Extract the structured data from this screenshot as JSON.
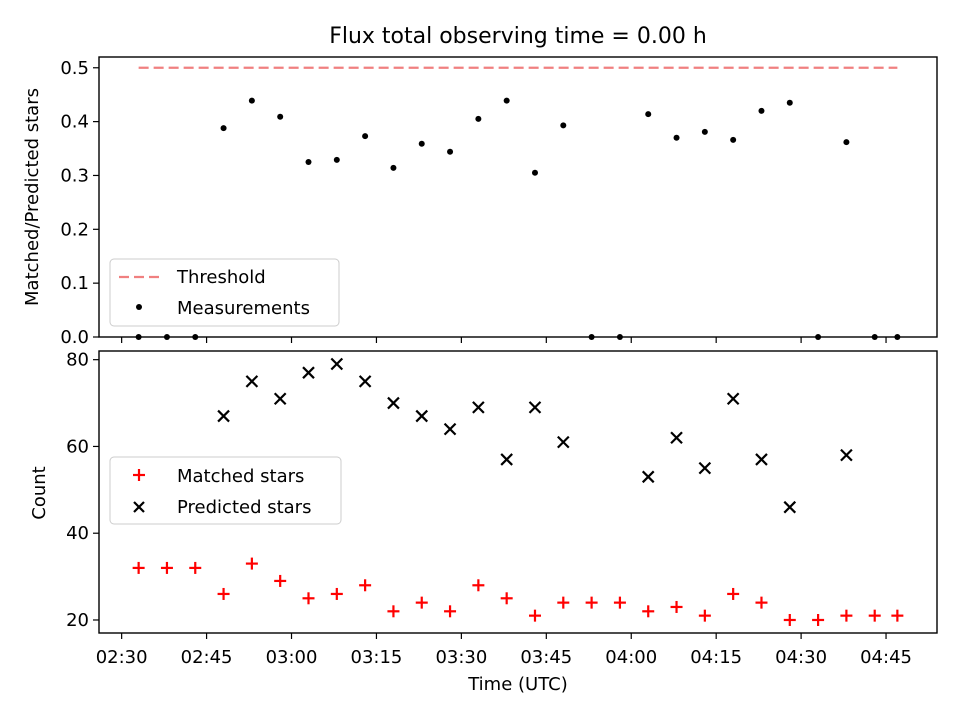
{
  "chart_data": [
    {
      "type": "scatter",
      "title": "Flux total observing time = 0.00 h",
      "ylabel": "Matched/Predicted stars",
      "ylim": [
        0,
        0.52
      ],
      "yticks": [
        "0.0",
        "0.1",
        "0.2",
        "0.3",
        "0.4",
        "0.5"
      ],
      "xticks": [
        "02:30",
        "02:45",
        "03:00",
        "03:15",
        "03:30",
        "03:45",
        "04:00",
        "04:15",
        "04:30",
        "04:45"
      ],
      "xlim": [
        "02:26",
        "04:54"
      ],
      "legend_position": "lower-left",
      "series": [
        {
          "name": "Threshold",
          "kind": "line",
          "style": "dashed",
          "color": "#f08080",
          "x": [
            "02:33",
            "04:47"
          ],
          "y": [
            0.5,
            0.5
          ]
        },
        {
          "name": "Measurements",
          "kind": "scatter",
          "marker": "dot",
          "color": "#000000",
          "x": [
            "02:33",
            "02:38",
            "02:43",
            "02:48",
            "02:53",
            "02:58",
            "03:03",
            "03:08",
            "03:13",
            "03:18",
            "03:23",
            "03:28",
            "03:33",
            "03:38",
            "03:43",
            "03:48",
            "03:53",
            "03:58",
            "04:03",
            "04:08",
            "04:13",
            "04:18",
            "04:23",
            "04:28",
            "04:33",
            "04:38",
            "04:43",
            "04:47"
          ],
          "y": [
            0.0,
            0.0,
            0.0,
            0.388,
            0.439,
            0.409,
            0.325,
            0.329,
            0.373,
            0.314,
            0.359,
            0.344,
            0.405,
            0.439,
            0.305,
            0.393,
            0.0,
            0.0,
            0.414,
            0.37,
            0.381,
            0.366,
            0.42,
            0.435,
            0.0,
            0.362,
            0.0,
            0.0
          ]
        }
      ]
    },
    {
      "type": "scatter",
      "xlabel": "Time (UTC)",
      "ylabel": "Count",
      "ylim": [
        17,
        82
      ],
      "yticks": [
        "20",
        "40",
        "60",
        "80"
      ],
      "xticks": [
        "02:30",
        "02:45",
        "03:00",
        "03:15",
        "03:30",
        "03:45",
        "04:00",
        "04:15",
        "04:30",
        "04:45"
      ],
      "xlim": [
        "02:26",
        "04:54"
      ],
      "legend_position": "center-left",
      "series": [
        {
          "name": "Matched stars",
          "kind": "scatter",
          "marker": "plus",
          "color": "#ff0000",
          "x": [
            "02:33",
            "02:38",
            "02:43",
            "02:48",
            "02:53",
            "02:58",
            "03:03",
            "03:08",
            "03:13",
            "03:18",
            "03:23",
            "03:28",
            "03:33",
            "03:38",
            "03:43",
            "03:48",
            "03:53",
            "03:58",
            "04:03",
            "04:08",
            "04:13",
            "04:18",
            "04:23",
            "04:28",
            "04:33",
            "04:38",
            "04:43",
            "04:47"
          ],
          "y": [
            32,
            32,
            32,
            26,
            33,
            29,
            25,
            26,
            28,
            22,
            24,
            22,
            28,
            25,
            21,
            24,
            24,
            24,
            22,
            23,
            21,
            26,
            24,
            20,
            20,
            21,
            21,
            21
          ]
        },
        {
          "name": "Predicted stars",
          "kind": "scatter",
          "marker": "x",
          "color": "#000000",
          "x": [
            "02:48",
            "02:53",
            "02:58",
            "03:03",
            "03:08",
            "03:13",
            "03:18",
            "03:23",
            "03:28",
            "03:33",
            "03:38",
            "03:43",
            "03:48",
            "04:03",
            "04:08",
            "04:13",
            "04:18",
            "04:23",
            "04:28",
            "04:38"
          ],
          "y": [
            67,
            75,
            71,
            77,
            79,
            75,
            70,
            67,
            64,
            69,
            57,
            69,
            61,
            53,
            62,
            55,
            71,
            57,
            46,
            58
          ]
        }
      ]
    }
  ]
}
